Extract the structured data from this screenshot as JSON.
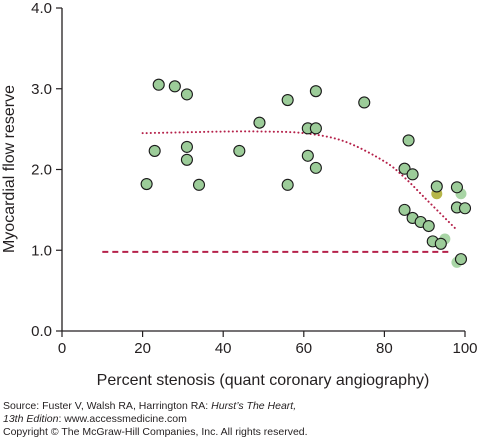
{
  "chart_data": {
    "type": "scatter",
    "xlabel": "Percent stenosis (quant coronary angiography)",
    "ylabel": "Myocardial flow reserve",
    "xlim": [
      0,
      100
    ],
    "ylim": [
      0.0,
      4.0
    ],
    "xticks": [
      "0",
      "20",
      "40",
      "60",
      "80",
      "100"
    ],
    "yticks": [
      "0.0",
      "1.0",
      "2.0",
      "3.0",
      "4.0"
    ],
    "grid": false,
    "colors": {
      "marker_fill": "#9ccc99",
      "marker_edge": "#1a1a1a",
      "light_marker_fill": "#a8d5a5",
      "olive_marker_fill": "#b6b64a",
      "curve": "#b5214a"
    },
    "points": [
      {
        "x": 21,
        "y": 1.82
      },
      {
        "x": 23,
        "y": 2.23
      },
      {
        "x": 24,
        "y": 3.05
      },
      {
        "x": 28,
        "y": 3.03
      },
      {
        "x": 31,
        "y": 2.93
      },
      {
        "x": 31,
        "y": 2.28
      },
      {
        "x": 31,
        "y": 2.12
      },
      {
        "x": 34,
        "y": 1.81
      },
      {
        "x": 44,
        "y": 2.23
      },
      {
        "x": 49,
        "y": 2.58
      },
      {
        "x": 56,
        "y": 2.86
      },
      {
        "x": 56,
        "y": 1.81
      },
      {
        "x": 61,
        "y": 2.51
      },
      {
        "x": 61,
        "y": 2.17
      },
      {
        "x": 63,
        "y": 2.51
      },
      {
        "x": 63,
        "y": 2.02
      },
      {
        "x": 63,
        "y": 2.97
      },
      {
        "x": 75,
        "y": 2.83
      },
      {
        "x": 85,
        "y": 2.01
      },
      {
        "x": 86,
        "y": 2.36
      },
      {
        "x": 87,
        "y": 1.94
      },
      {
        "x": 85,
        "y": 1.5
      },
      {
        "x": 87,
        "y": 1.4
      },
      {
        "x": 89,
        "y": 1.35
      },
      {
        "x": 91,
        "y": 1.3
      },
      {
        "x": 92,
        "y": 1.11
      },
      {
        "x": 93,
        "y": 1.79
      },
      {
        "x": 94,
        "y": 1.08
      },
      {
        "x": 98,
        "y": 1.78
      },
      {
        "x": 98,
        "y": 1.53
      },
      {
        "x": 100,
        "y": 1.52
      },
      {
        "x": 99,
        "y": 0.89
      }
    ],
    "light_points": [
      {
        "x": 95,
        "y": 1.14
      },
      {
        "x": 98,
        "y": 0.85
      },
      {
        "x": 99,
        "y": 1.7
      }
    ],
    "olive_points": [
      {
        "x": 93,
        "y": 1.7
      }
    ],
    "curves": [
      {
        "style": "dotted",
        "x": [
          20,
          30,
          40,
          50,
          60,
          70,
          80,
          85,
          90,
          95,
          98
        ],
        "y": [
          2.45,
          2.46,
          2.47,
          2.47,
          2.45,
          2.35,
          2.1,
          1.9,
          1.65,
          1.4,
          1.25
        ]
      },
      {
        "style": "dashed",
        "x": [
          10,
          96
        ],
        "y": [
          0.98,
          0.98
        ]
      }
    ]
  },
  "credits": {
    "source_prefix": "Source: Fuster V, Walsh RA, Harrington RA: ",
    "source_title": "Hurst’s The Heart,",
    "edition": "13th Edition",
    "website": ": www.accessmedicine.com",
    "copyright": "Copyright © The McGraw-Hill Companies, Inc. All rights reserved."
  }
}
